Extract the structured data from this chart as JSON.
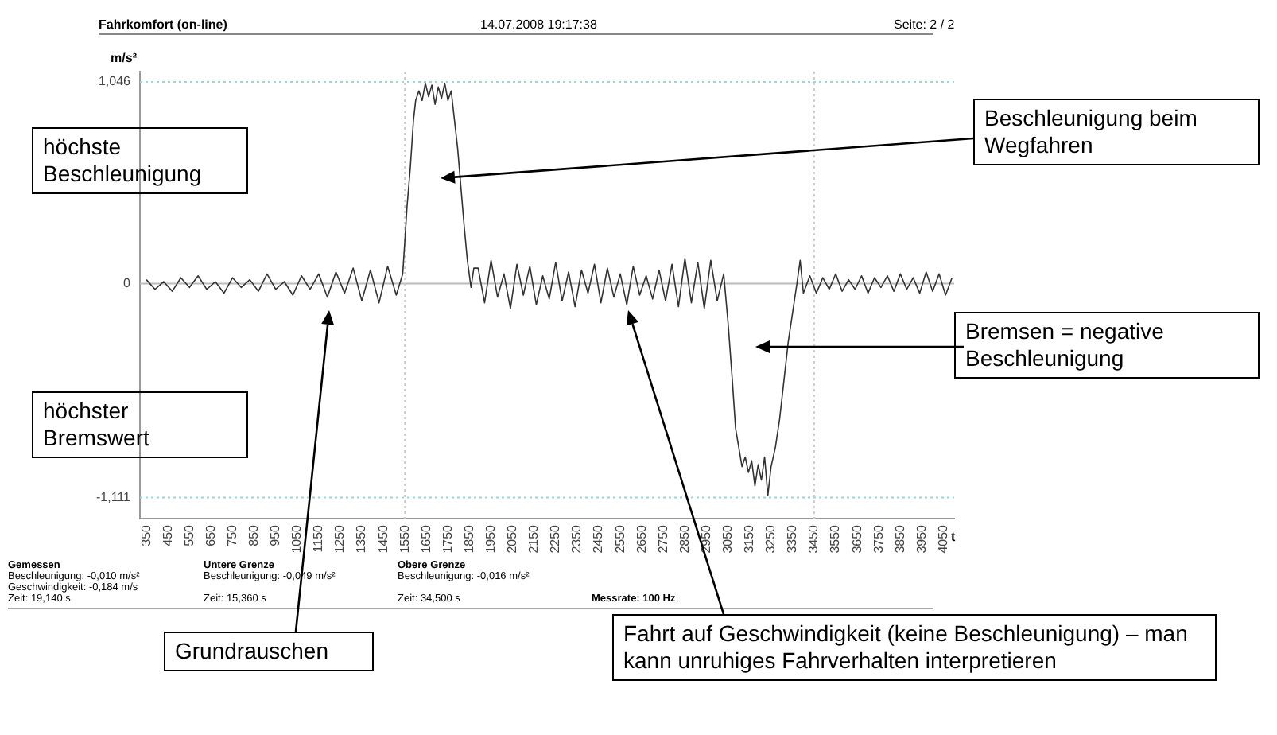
{
  "chart_data": {
    "type": "line",
    "title": "Fahrkomfort (on-line)",
    "subtitle": "14.07.2008 19:17:38",
    "ylabel": "m/s²",
    "xlabel": "t",
    "x": [
      350,
      390,
      430,
      470,
      510,
      550,
      590,
      630,
      670,
      710,
      750,
      790,
      830,
      870,
      910,
      950,
      990,
      1030,
      1070,
      1110,
      1150,
      1190,
      1230,
      1270,
      1310,
      1350,
      1390,
      1430,
      1470,
      1510,
      1540,
      1560,
      1575,
      1590,
      1600,
      1615,
      1630,
      1645,
      1660,
      1675,
      1690,
      1705,
      1720,
      1735,
      1750,
      1765,
      1780,
      1795,
      1810,
      1825,
      1840,
      1857,
      1870,
      1890,
      1920,
      1950,
      1980,
      2010,
      2040,
      2070,
      2100,
      2130,
      2160,
      2190,
      2220,
      2250,
      2280,
      2310,
      2340,
      2370,
      2400,
      2430,
      2460,
      2490,
      2520,
      2550,
      2580,
      2610,
      2640,
      2670,
      2700,
      2730,
      2760,
      2790,
      2820,
      2850,
      2880,
      2910,
      2940,
      2970,
      3000,
      3030,
      3050,
      3070,
      3085,
      3100,
      3115,
      3130,
      3145,
      3160,
      3175,
      3190,
      3205,
      3220,
      3235,
      3250,
      3270,
      3290,
      3310,
      3330,
      3350,
      3370,
      3385,
      3400,
      3430,
      3460,
      3490,
      3520,
      3550,
      3580,
      3610,
      3640,
      3670,
      3700,
      3730,
      3760,
      3790,
      3820,
      3850,
      3880,
      3910,
      3940,
      3970,
      4000,
      4030,
      4060,
      4090
    ],
    "series": [
      {
        "color": "#333333",
        "values": [
          0.02,
          -0.03,
          0.01,
          -0.04,
          0.03,
          -0.02,
          0.04,
          -0.03,
          0.01,
          -0.05,
          0.03,
          -0.02,
          0.02,
          -0.04,
          0.05,
          -0.03,
          0.01,
          -0.06,
          0.04,
          -0.03,
          0.05,
          -0.07,
          0.06,
          -0.05,
          0.08,
          -0.09,
          0.07,
          -0.1,
          0.09,
          -0.06,
          0.05,
          0.4,
          0.6,
          0.85,
          0.95,
          1.0,
          0.95,
          1.04,
          0.97,
          1.03,
          0.93,
          1.02,
          0.96,
          1.04,
          0.95,
          1.0,
          0.85,
          0.7,
          0.5,
          0.3,
          0.12,
          -0.02,
          0.08,
          0.08,
          -0.1,
          0.12,
          -0.07,
          0.05,
          -0.13,
          0.1,
          -0.06,
          0.09,
          -0.11,
          0.04,
          -0.08,
          0.11,
          -0.09,
          0.06,
          -0.12,
          0.07,
          -0.05,
          0.1,
          -0.1,
          0.08,
          -0.07,
          0.05,
          -0.11,
          0.09,
          -0.06,
          0.04,
          -0.08,
          0.07,
          -0.09,
          0.1,
          -0.12,
          0.13,
          -0.1,
          0.11,
          -0.13,
          0.12,
          -0.09,
          0.05,
          -0.2,
          -0.5,
          -0.75,
          -0.85,
          -0.95,
          -0.9,
          -0.98,
          -0.92,
          -1.05,
          -0.94,
          -1.02,
          -0.9,
          -1.1,
          -0.95,
          -0.85,
          -0.7,
          -0.5,
          -0.3,
          -0.15,
          0.0,
          0.12,
          -0.05,
          0.04,
          -0.05,
          0.03,
          -0.03,
          0.05,
          -0.04,
          0.02,
          -0.03,
          0.04,
          -0.05,
          0.03,
          -0.02,
          0.04,
          -0.04,
          0.05,
          -0.03,
          0.03,
          -0.05,
          0.06,
          -0.04,
          0.05,
          -0.06,
          0.03
        ]
      }
    ],
    "xlim": [
      320,
      4100
    ],
    "ylim": [
      -1.22,
      1.1
    ],
    "xticks": [
      350,
      450,
      550,
      650,
      750,
      850,
      950,
      1050,
      1150,
      1250,
      1350,
      1450,
      1550,
      1650,
      1750,
      1850,
      1950,
      2050,
      2150,
      2250,
      2350,
      2450,
      2550,
      2650,
      2750,
      2850,
      2950,
      3050,
      3150,
      3250,
      3350,
      3450,
      3550,
      3650,
      3750,
      3850,
      3950,
      4050
    ],
    "yticks": [
      {
        "value": -1.111,
        "label": "-1,111"
      },
      0,
      {
        "value": 1.046,
        "label": "1,046"
      }
    ],
    "ref_lines": [
      {
        "axis": "y",
        "value": 0,
        "color": "#bbbbbb",
        "line_style": "solid"
      },
      {
        "axis": "y",
        "value": 1.046,
        "color": "#9ed6d6",
        "line_style": "dotted"
      },
      {
        "axis": "y",
        "value": -1.111,
        "color": "#9ed6d6",
        "line_style": "dotted"
      },
      {
        "axis": "x",
        "value": 1550,
        "color": "#cccccc",
        "line_style": "dotted"
      },
      {
        "axis": "x",
        "value": 3450,
        "color": "#cccccc",
        "line_style": "dotted"
      }
    ],
    "grid": false,
    "legend": false,
    "marker": "none",
    "line_style": "solid",
    "annotations": [
      "Seite: 2 / 2",
      "höchste Beschleunigung",
      "Beschleunigung beim Wegfahren",
      "Bremsen = negative Beschleunigung",
      "höchster Bremswert",
      "Grundrauschen",
      "Fahrt auf Geschwindigkeit (keine Beschleunigung) – man kann unruhiges Fahrverhalten interpretieren",
      "Gemessen",
      "Beschleunigung: -0,010 m/s²",
      "Geschwindigkeit: -0,184 m/s",
      "Zeit: 19,140 s",
      "Untere Grenze",
      "Beschleunigung: -0,049 m/s²",
      "Zeit: 15,360 s",
      "Obere Grenze",
      "Beschleunigung: -0,016 m/s²",
      "Zeit: 34,500 s",
      "Messrate: 100 Hz"
    ]
  }
}
